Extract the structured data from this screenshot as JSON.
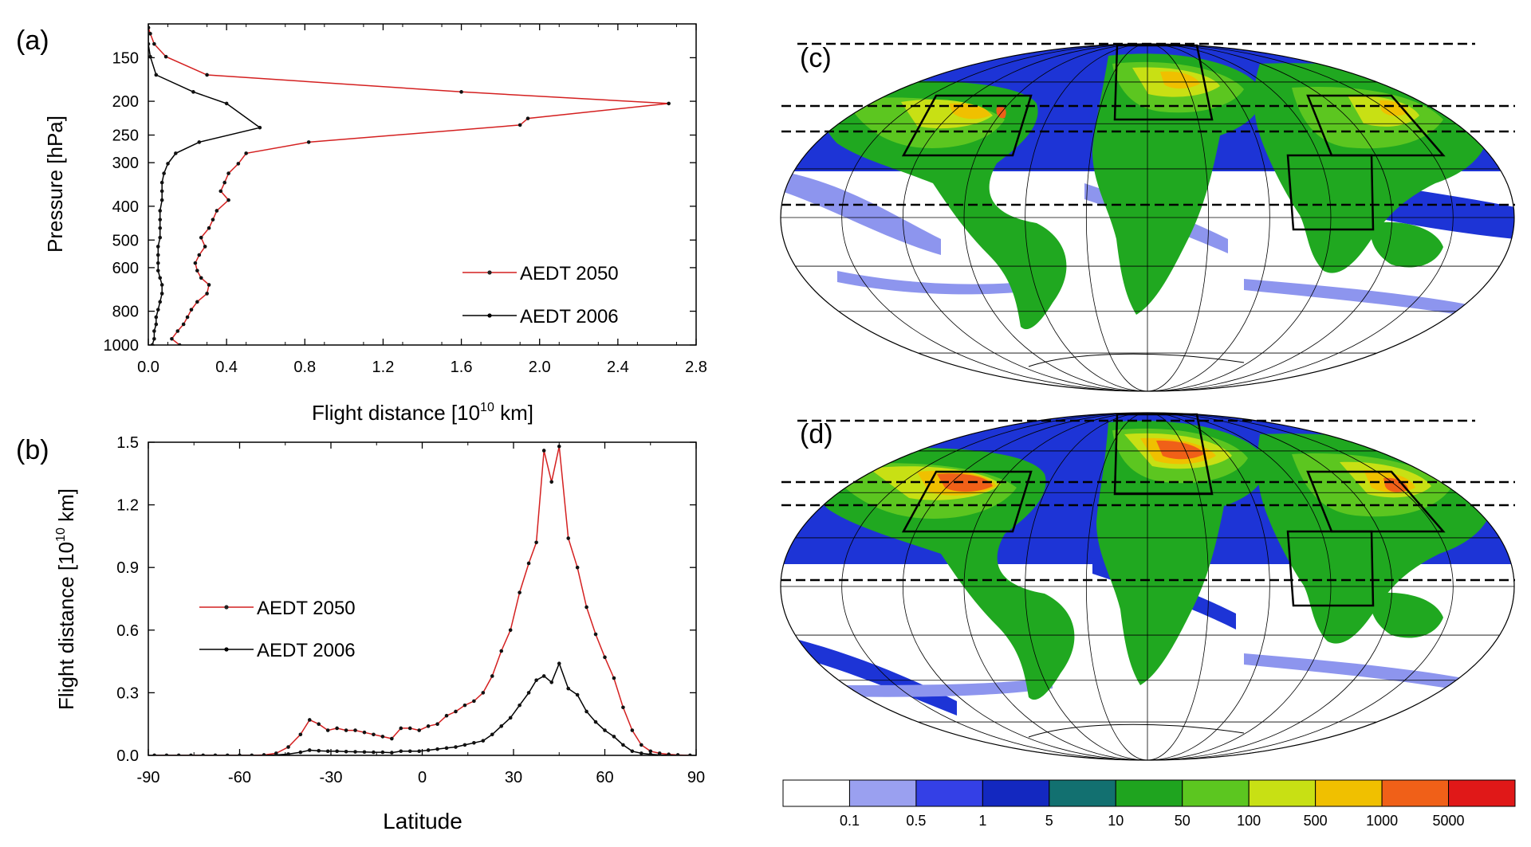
{
  "chart_data": [
    {
      "panel": "(a)",
      "type": "line",
      "xlabel": "Flight distance [10",
      "xlabel_sup": "10",
      "xlabel_tail": " km]",
      "ylabel": "Pressure [hPa]",
      "xlim": [
        0,
        2.8
      ],
      "ylim": [
        1000,
        120
      ],
      "yscale": "log",
      "x_ticks": [
        "0.0",
        "0.4",
        "0.8",
        "1.2",
        "1.6",
        "2.0",
        "2.4",
        "2.8"
      ],
      "x_tick_values": [
        0,
        0.4,
        0.8,
        1.2,
        1.6,
        2.0,
        2.4,
        2.8
      ],
      "y_ticks": [
        "150",
        "200",
        "250",
        "300",
        "400",
        "500",
        "600",
        "800",
        "1000"
      ],
      "y_tick_values": [
        150,
        200,
        250,
        300,
        400,
        500,
        600,
        800,
        1000
      ],
      "legend_position": "bottom-right",
      "series": [
        {
          "name": "AEDT 2050",
          "color": "#d42020",
          "points": [
            [
              0.0,
              123
            ],
            [
              0.01,
              128
            ],
            [
              0.03,
              137
            ],
            [
              0.09,
              149
            ],
            [
              0.3,
              168
            ],
            [
              1.6,
              188
            ],
            [
              2.66,
              203
            ],
            [
              1.94,
              224
            ],
            [
              1.9,
              234
            ],
            [
              0.82,
              262
            ],
            [
              0.5,
              282
            ],
            [
              0.46,
              302
            ],
            [
              0.41,
              322
            ],
            [
              0.39,
              342
            ],
            [
              0.37,
              362
            ],
            [
              0.41,
              384
            ],
            [
              0.35,
              412
            ],
            [
              0.33,
              437
            ],
            [
              0.31,
              462
            ],
            [
              0.27,
              492
            ],
            [
              0.29,
              522
            ],
            [
              0.26,
              552
            ],
            [
              0.24,
              582
            ],
            [
              0.25,
              612
            ],
            [
              0.27,
              642
            ],
            [
              0.31,
              672
            ],
            [
              0.3,
              712
            ],
            [
              0.25,
              752
            ],
            [
              0.22,
              792
            ],
            [
              0.2,
              832
            ],
            [
              0.18,
              872
            ],
            [
              0.15,
              912
            ],
            [
              0.12,
              960
            ],
            [
              0.16,
              1000
            ]
          ]
        },
        {
          "name": "AEDT 2006",
          "color": "#000000",
          "points": [
            [
              0.0,
              123
            ],
            [
              0.0,
              128
            ],
            [
              0.0,
              137
            ],
            [
              0.01,
              149
            ],
            [
              0.04,
              168
            ],
            [
              0.23,
              188
            ],
            [
              0.4,
              203
            ],
            [
              0.57,
              238
            ],
            [
              0.26,
              262
            ],
            [
              0.14,
              282
            ],
            [
              0.1,
              302
            ],
            [
              0.08,
              322
            ],
            [
              0.07,
              342
            ],
            [
              0.07,
              362
            ],
            [
              0.07,
              384
            ],
            [
              0.06,
              412
            ],
            [
              0.06,
              437
            ],
            [
              0.06,
              462
            ],
            [
              0.06,
              492
            ],
            [
              0.05,
              522
            ],
            [
              0.05,
              552
            ],
            [
              0.05,
              582
            ],
            [
              0.05,
              612
            ],
            [
              0.06,
              642
            ],
            [
              0.07,
              672
            ],
            [
              0.07,
              712
            ],
            [
              0.06,
              752
            ],
            [
              0.05,
              792
            ],
            [
              0.04,
              832
            ],
            [
              0.04,
              872
            ],
            [
              0.03,
              912
            ],
            [
              0.03,
              960
            ],
            [
              0.02,
              1000
            ]
          ]
        }
      ]
    },
    {
      "panel": "(b)",
      "type": "line",
      "xlabel": "Latitude",
      "ylabel": "Flight distance [10",
      "ylabel_sup": "10",
      "ylabel_tail": " km]",
      "xlim": [
        -90,
        90
      ],
      "ylim": [
        0,
        1.5
      ],
      "x_ticks": [
        "-90",
        "-60",
        "-30",
        "0",
        "30",
        "60",
        "90"
      ],
      "x_tick_values": [
        -90,
        -60,
        -30,
        0,
        30,
        60,
        90
      ],
      "y_ticks": [
        "0.0",
        "0.3",
        "0.6",
        "0.9",
        "1.2",
        "1.5"
      ],
      "y_tick_values": [
        0,
        0.3,
        0.6,
        0.9,
        1.2,
        1.5
      ],
      "legend_position": "middle-left",
      "x": [
        -88,
        -84,
        -80,
        -76,
        -72,
        -68,
        -64,
        -60,
        -56,
        -52,
        -48,
        -44,
        -40,
        -37,
        -34,
        -31,
        -28,
        -25,
        -22,
        -19,
        -16,
        -13,
        -10,
        -7,
        -4,
        -1,
        2,
        5,
        8,
        11,
        14,
        17,
        20,
        23,
        26,
        29,
        32,
        35,
        37.5,
        40,
        42.5,
        45,
        48,
        51,
        54,
        57,
        60,
        63,
        66,
        69,
        72,
        75,
        78,
        81,
        84,
        88
      ],
      "series": [
        {
          "name": "AEDT 2050",
          "color": "#d42020",
          "values": [
            0,
            0,
            0,
            0,
            0,
            0,
            0,
            0,
            0,
            0.002,
            0.01,
            0.04,
            0.1,
            0.17,
            0.15,
            0.12,
            0.13,
            0.12,
            0.12,
            0.11,
            0.1,
            0.09,
            0.08,
            0.13,
            0.13,
            0.12,
            0.14,
            0.15,
            0.19,
            0.21,
            0.24,
            0.26,
            0.3,
            0.38,
            0.5,
            0.6,
            0.78,
            0.92,
            1.02,
            1.46,
            1.31,
            1.48,
            1.04,
            0.9,
            0.71,
            0.58,
            0.47,
            0.37,
            0.23,
            0.12,
            0.05,
            0.02,
            0.01,
            0.005,
            0.002,
            0
          ]
        },
        {
          "name": "AEDT 2006",
          "color": "#000000",
          "values": [
            0,
            0,
            0,
            0,
            0,
            0,
            0,
            0,
            0,
            0,
            0.002,
            0.006,
            0.015,
            0.025,
            0.022,
            0.02,
            0.02,
            0.018,
            0.017,
            0.016,
            0.015,
            0.015,
            0.013,
            0.02,
            0.02,
            0.02,
            0.025,
            0.03,
            0.035,
            0.04,
            0.05,
            0.06,
            0.07,
            0.1,
            0.14,
            0.18,
            0.24,
            0.3,
            0.36,
            0.38,
            0.35,
            0.44,
            0.32,
            0.29,
            0.21,
            0.16,
            0.12,
            0.09,
            0.05,
            0.02,
            0.01,
            0.005,
            0.002,
            0.001,
            0,
            0
          ]
        }
      ]
    },
    {
      "panel": "(c)",
      "type": "heatmap",
      "projection": "mollweide"
    },
    {
      "panel": "(d)",
      "type": "heatmap",
      "projection": "mollweide"
    }
  ],
  "colorbar": {
    "labels": [
      "0.1",
      "0.5",
      "1",
      "5",
      "10",
      "50",
      "100",
      "500",
      "1000",
      "5000"
    ],
    "colors": [
      "#ffffff",
      "#9aa0f0",
      "#3440e6",
      "#1328c0",
      "#127070",
      "#1fa41f",
      "#5cc620",
      "#c8e014",
      "#f0c000",
      "#f06018",
      "#e01818"
    ]
  }
}
